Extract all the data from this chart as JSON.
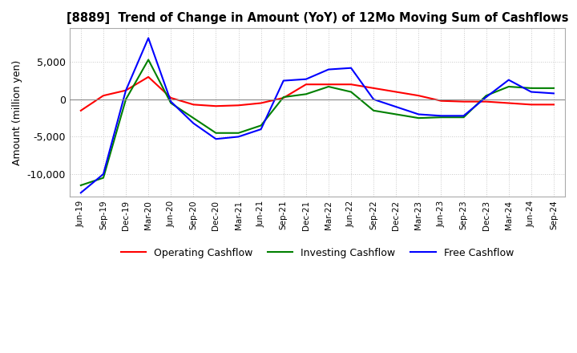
{
  "title": "[8889]  Trend of Change in Amount (YoY) of 12Mo Moving Sum of Cashflows",
  "ylabel": "Amount (million yen)",
  "background_color": "#ffffff",
  "grid_color": "#c8c8c8",
  "grid_style": "dotted",
  "ylim": [
    -13000,
    9500
  ],
  "yticks": [
    -10000,
    -5000,
    0,
    5000
  ],
  "legend_labels": [
    "Operating Cashflow",
    "Investing Cashflow",
    "Free Cashflow"
  ],
  "legend_colors": [
    "#ff0000",
    "#008000",
    "#0000ff"
  ],
  "x_labels": [
    "Jun-19",
    "Sep-19",
    "Dec-19",
    "Mar-20",
    "Jun-20",
    "Sep-20",
    "Dec-20",
    "Mar-21",
    "Jun-21",
    "Sep-21",
    "Dec-21",
    "Mar-22",
    "Jun-22",
    "Sep-22",
    "Dec-22",
    "Mar-23",
    "Jun-23",
    "Sep-23",
    "Dec-23",
    "Mar-24",
    "Jun-24",
    "Sep-24"
  ],
  "operating": [
    -1500,
    500,
    1200,
    3000,
    200,
    -700,
    -900,
    -800,
    -500,
    200,
    2000,
    2000,
    2000,
    1500,
    1000,
    500,
    -200,
    -300,
    -300,
    -500,
    -700,
    -700
  ],
  "investing": [
    -11500,
    -10500,
    0,
    5300,
    -500,
    -2500,
    -4500,
    -4500,
    -3500,
    300,
    700,
    1700,
    1000,
    -1500,
    -2000,
    -2500,
    -2400,
    -2400,
    500,
    1700,
    1500,
    1500
  ],
  "free": [
    -12500,
    -10000,
    1200,
    8200,
    -300,
    -3200,
    -5300,
    -5000,
    -4000,
    2500,
    2700,
    4000,
    4200,
    0,
    -1000,
    -2000,
    -2200,
    -2200,
    300,
    2600,
    1000,
    800
  ]
}
